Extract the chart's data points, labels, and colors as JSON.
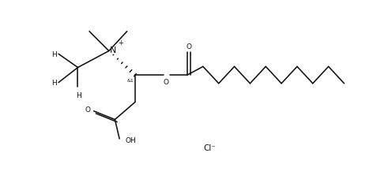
{
  "background_color": "#ffffff",
  "figsize": [
    4.96,
    2.28
  ],
  "dpi": 100,
  "line_color": "#111111",
  "line_width": 1.15,
  "font_size": 6.5,
  "cl_label": "Cl⁻",
  "xlim": [
    0,
    9.8
  ],
  "ylim": [
    0.2,
    4.8
  ]
}
